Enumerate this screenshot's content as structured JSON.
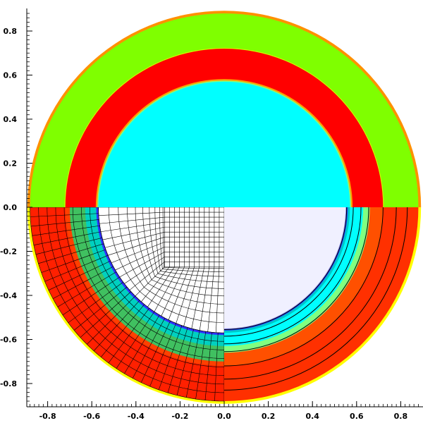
{
  "chart_data": {
    "type": "heatmap",
    "title": "",
    "xlabel": "",
    "ylabel": "",
    "xlim": [
      -0.9,
      0.9
    ],
    "ylim": [
      -0.9,
      0.9
    ],
    "x_ticks": [
      -0.8,
      -0.6,
      -0.4,
      -0.2,
      0.0,
      0.2,
      0.4,
      0.6,
      0.8
    ],
    "x_tick_labels": [
      "-0.8",
      "-0.6",
      "-0.4",
      "-0.2",
      "0.0",
      "0.2",
      "0.4",
      "0.6",
      "0.8"
    ],
    "y_ticks": [
      0.8,
      0.6,
      0.4,
      0.2,
      0.0,
      -0.2,
      -0.4,
      -0.6,
      -0.8
    ],
    "y_tick_labels": [
      "0.8",
      "0.6",
      "0.4",
      "0.2",
      "0.0",
      "-0.2",
      "-0.4",
      "-0.6",
      "-0.8"
    ],
    "grid": false,
    "colors": {
      "green": "#7fff00",
      "red": "#ff0000",
      "red_orange": "#ff3000",
      "cyan": "#00ffff",
      "lavender": "#f0f0ff",
      "blue": "#2020ff",
      "yellow": "#ffff00",
      "orange": "#ff9000"
    },
    "upper_half": {
      "regions": [
        {
          "color": "green",
          "r_inner": 0.72,
          "r_outer": 0.88
        },
        {
          "color": "red",
          "r_inner": 0.57,
          "r_outer": 0.72
        },
        {
          "color": "cyan",
          "r_inner": 0.0,
          "r_outer": 0.57
        }
      ]
    },
    "lower_right": {
      "regions": [
        {
          "color": "red_orange",
          "r_inner": 0.63,
          "r_outer": 0.88
        },
        {
          "color": "cyan",
          "r_inner": 0.57,
          "r_outer": 0.63
        },
        {
          "color": "lavender",
          "r_inner": 0.0,
          "r_outer": 0.55
        }
      ],
      "contour_radii": [
        0.555,
        0.585,
        0.62,
        0.655,
        0.72,
        0.78,
        0.83
      ]
    },
    "lower_left_mesh": {
      "core_half_width": 0.27,
      "inner_radius": 0.57,
      "outer_radius": 0.88,
      "core_divisions": 12,
      "transition_layers": 10,
      "outer_layers": 8,
      "angular_divisions": 32
    }
  }
}
